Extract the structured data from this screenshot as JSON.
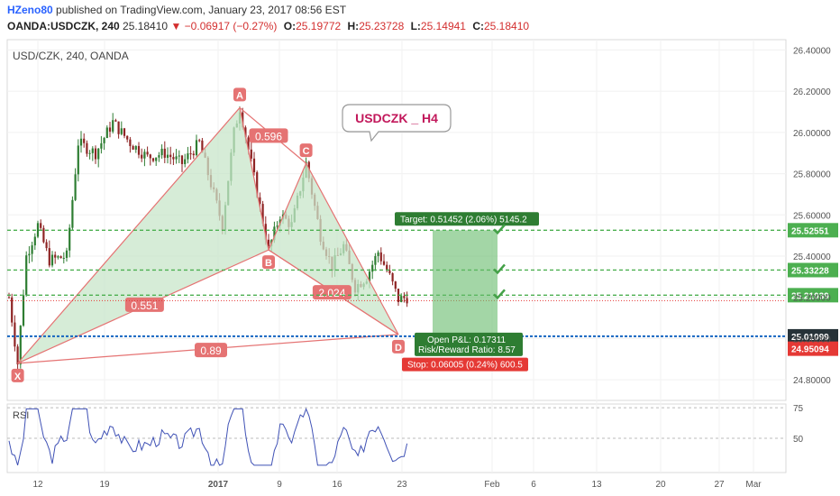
{
  "header": {
    "author": "HZeno80",
    "published_text": "published on TradingView.com, January 23, 2017 08:56 EST",
    "symbol": "OANDA:USDCZK, 240",
    "last": "25.18410",
    "change": "−0.06917 (−0.27%)",
    "o_label": "O:",
    "o_value": "25.19772",
    "h_label": "H:",
    "h_value": "25.23728",
    "l_label": "L:",
    "l_value": "25.14941",
    "c_label": "C:",
    "c_value": "25.18410"
  },
  "colors": {
    "up": "#26a69a",
    "down": "#ef5350",
    "pattern_fill": "#c8e6c9",
    "pattern_line": "#e57373",
    "target": "#4caf50",
    "stop": "#e53935",
    "rsi": "#3f51b5"
  },
  "chart_data": {
    "type": "candlestick",
    "title": "USD/CZK, 240, OANDA",
    "annotation": "USDCZK _ H4",
    "ylim": [
      24.7,
      26.45
    ],
    "y_ticks": [
      "26.40000",
      "26.20000",
      "26.00000",
      "25.80000",
      "25.60000",
      "25.40000",
      "25.20000",
      "25.00000",
      "24.80000"
    ],
    "x_ticks": [
      "12",
      "19",
      "2017",
      "9",
      "16",
      "23",
      "Feb",
      "6",
      "13",
      "20",
      "27",
      "Mar"
    ],
    "harmonic_pattern": {
      "points": [
        {
          "label": "X",
          "t": 3,
          "price": 24.88
        },
        {
          "label": "A",
          "t": 80,
          "price": 26.12
        },
        {
          "label": "B",
          "t": 90,
          "price": 25.43
        },
        {
          "label": "C",
          "t": 103,
          "price": 25.85
        },
        {
          "label": "D",
          "t": 135,
          "price": 25.02
        }
      ],
      "ratios": [
        {
          "label": "0.596",
          "t": 90,
          "price": 25.98
        },
        {
          "label": "0.551",
          "t": 47,
          "price": 25.16
        },
        {
          "label": "2.024",
          "t": 112,
          "price": 25.22
        },
        {
          "label": "0.89",
          "t": 70,
          "price": 24.94
        }
      ]
    },
    "levels": [
      {
        "price": 25.52551,
        "label": "25.52551",
        "kind": "target"
      },
      {
        "price": 25.33228,
        "label": "25.33228",
        "kind": "target"
      },
      {
        "price": 25.21039,
        "label": "25.21039",
        "kind": "target"
      },
      {
        "price": 25.1841,
        "label": "",
        "kind": "last"
      },
      {
        "price": 25.01099,
        "label": "25.01099",
        "kind": "entry"
      },
      {
        "price": 24.95094,
        "label": "24.95094",
        "kind": "stop"
      }
    ],
    "position": {
      "target_text": "Target: 0.51452 (2.06%) 5145.2",
      "pnl_text": "Open P&L: 0.17311",
      "rr_text": "Risk/Reward Ratio: 8.57",
      "stop_text": "Stop: 0.06005 (0.24%) 600.5",
      "entry": 25.01099,
      "target": 25.52551,
      "stop": 24.95094
    },
    "rsi": {
      "label": "RSI",
      "levels": [
        75,
        50
      ],
      "ylim": [
        22,
        78
      ]
    }
  }
}
